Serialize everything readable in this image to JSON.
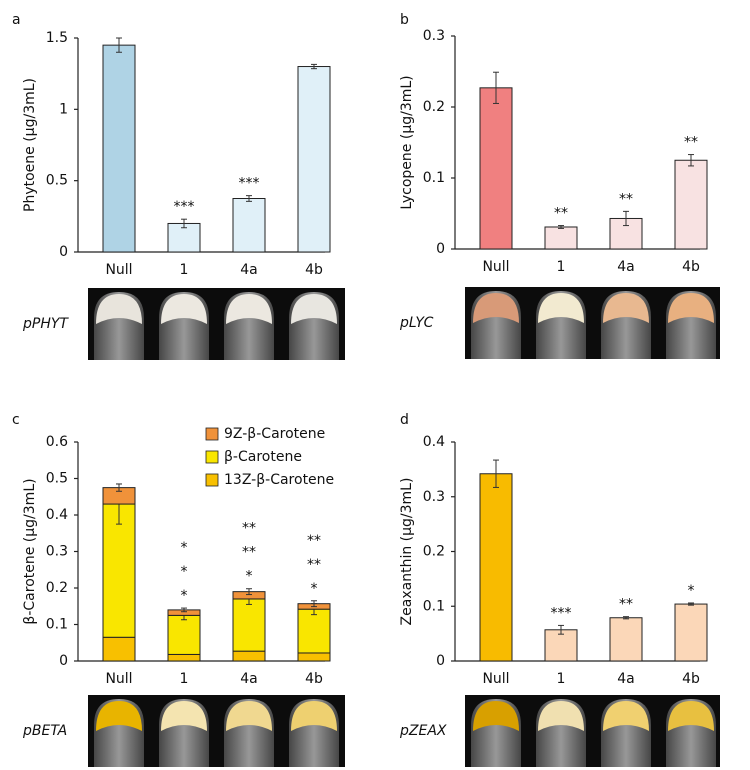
{
  "chart_data": [
    {
      "type": "bar",
      "panel": "a",
      "y_label": "Phytoene (μg/3mL)",
      "photo_label": "pPHYT",
      "categories": [
        "Null",
        "1",
        "4a",
        "4b"
      ],
      "values": [
        1.45,
        0.2,
        0.375,
        1.3
      ],
      "errors": [
        0.05,
        0.03,
        0.02,
        0.015
      ],
      "colors": [
        "#afd3e5",
        "#e0f0f8",
        "#e0f0f8",
        "#e0f0f8"
      ],
      "annotations": [
        null,
        "***",
        "***",
        null
      ],
      "ylim": [
        0,
        1.5
      ],
      "yticks": [
        0,
        0.5,
        1,
        1.5
      ]
    },
    {
      "type": "bar",
      "panel": "b",
      "y_label": "Lycopene (μg/3mL)",
      "photo_label": "pLYC",
      "categories": [
        "Null",
        "1",
        "4a",
        "4b"
      ],
      "values": [
        0.227,
        0.031,
        0.043,
        0.125
      ],
      "errors": [
        0.022,
        0.002,
        0.01,
        0.008
      ],
      "colors": [
        "#f08080",
        "#f8e2e2",
        "#f8e2e2",
        "#f8e2e2"
      ],
      "annotations": [
        null,
        "**",
        "**",
        "**"
      ],
      "ylim": [
        0,
        0.3
      ],
      "yticks": [
        0,
        0.1,
        0.2,
        0.3
      ]
    },
    {
      "type": "stacked_bar",
      "panel": "c",
      "y_label": "β-Carotene (μg/3mL)",
      "photo_label": "pBETA",
      "categories": [
        "Null",
        "1",
        "4a",
        "4b"
      ],
      "series": [
        {
          "name": "13Z-β-Carotene",
          "color": "#f8c000",
          "values": [
            0.065,
            0.018,
            0.027,
            0.022
          ]
        },
        {
          "name": "β-Carotene",
          "color": "#f9e600",
          "values": [
            0.365,
            0.107,
            0.143,
            0.12
          ],
          "errors": [
            0.055,
            0.012,
            0.015,
            0.015
          ]
        },
        {
          "name": "9Z-β-Carotene",
          "color": "#f0923a",
          "values": [
            0.045,
            0.015,
            0.02,
            0.015
          ],
          "errors": [
            0.01,
            0.005,
            0.008,
            0.008
          ]
        }
      ],
      "annotations": [
        null,
        [
          "*",
          "*",
          "*"
        ],
        [
          "*",
          "**",
          "**"
        ],
        [
          "*",
          "**",
          "**"
        ]
      ],
      "ylim": [
        0,
        0.6
      ],
      "yticks": [
        0,
        0.1,
        0.2,
        0.3,
        0.4,
        0.5,
        0.6
      ]
    },
    {
      "type": "bar",
      "panel": "d",
      "y_label": "Zeaxanthin (μg/3mL)",
      "photo_label": "pZEAX",
      "categories": [
        "Null",
        "1",
        "4a",
        "4b"
      ],
      "values": [
        0.342,
        0.057,
        0.079,
        0.104
      ],
      "errors": [
        0.025,
        0.008,
        0.002,
        0.002
      ],
      "colors": [
        "#f8bb00",
        "#fbd7b8",
        "#fbd7b8",
        "#fbd7b8"
      ],
      "annotations": [
        null,
        "***",
        "**",
        "*"
      ],
      "ylim": [
        0,
        0.4
      ],
      "yticks": [
        0,
        0.1,
        0.2,
        0.3,
        0.4
      ]
    }
  ]
}
